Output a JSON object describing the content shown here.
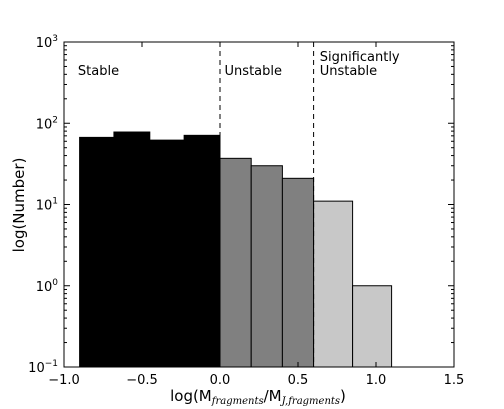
{
  "chart_data": {
    "type": "bar",
    "xlabel": "log(M_fragments/M_J,fragments)",
    "xlabel_parts": {
      "prefix": "log(M",
      "sub1": "fragments",
      "mid": "/M",
      "sub2": "J,fragments",
      "suffix": ")"
    },
    "ylabel": "log(Number)",
    "xlim": [
      -1.0,
      1.5
    ],
    "ylim": [
      0.1,
      1000
    ],
    "yscale": "log",
    "xticks": [
      {
        "value": -1.0,
        "label": "−1.0"
      },
      {
        "value": -0.5,
        "label": "−0.5"
      },
      {
        "value": 0.0,
        "label": "0.0"
      },
      {
        "value": 0.5,
        "label": "0.5"
      },
      {
        "value": 1.0,
        "label": "1.0"
      },
      {
        "value": 1.5,
        "label": "1.5"
      }
    ],
    "yticks": [
      {
        "value": 0.1,
        "base": "10",
        "exp": "−1"
      },
      {
        "value": 1,
        "base": "10",
        "exp": "0"
      },
      {
        "value": 10,
        "base": "10",
        "exp": "1"
      },
      {
        "value": 100,
        "base": "10",
        "exp": "2"
      },
      {
        "value": 1000,
        "base": "10",
        "exp": "3"
      }
    ],
    "bars": [
      {
        "x0": -0.9,
        "x1": -0.68,
        "value": 67,
        "color": "#000000"
      },
      {
        "x0": -0.68,
        "x1": -0.45,
        "value": 78,
        "color": "#000000"
      },
      {
        "x0": -0.45,
        "x1": -0.23,
        "value": 62,
        "color": "#000000"
      },
      {
        "x0": -0.23,
        "x1": 0.0,
        "value": 71,
        "color": "#000000"
      },
      {
        "x0": 0.0,
        "x1": 0.2,
        "value": 37,
        "color": "#808080"
      },
      {
        "x0": 0.2,
        "x1": 0.4,
        "value": 30,
        "color": "#808080"
      },
      {
        "x0": 0.4,
        "x1": 0.6,
        "value": 21,
        "color": "#808080"
      },
      {
        "x0": 0.6,
        "x1": 0.85,
        "value": 11,
        "color": "#c8c8c8"
      },
      {
        "x0": 0.85,
        "x1": 1.1,
        "value": 1,
        "color": "#c8c8c8"
      }
    ],
    "dividers": [
      0.0,
      0.6
    ],
    "regions": [
      {
        "x": -0.93,
        "label_lines": [
          "Stable"
        ]
      },
      {
        "x": 0.01,
        "label_lines": [
          "Unstable"
        ]
      },
      {
        "x": 0.62,
        "label_lines": [
          "Significantly",
          "Unstable"
        ]
      }
    ],
    "grid": false
  }
}
